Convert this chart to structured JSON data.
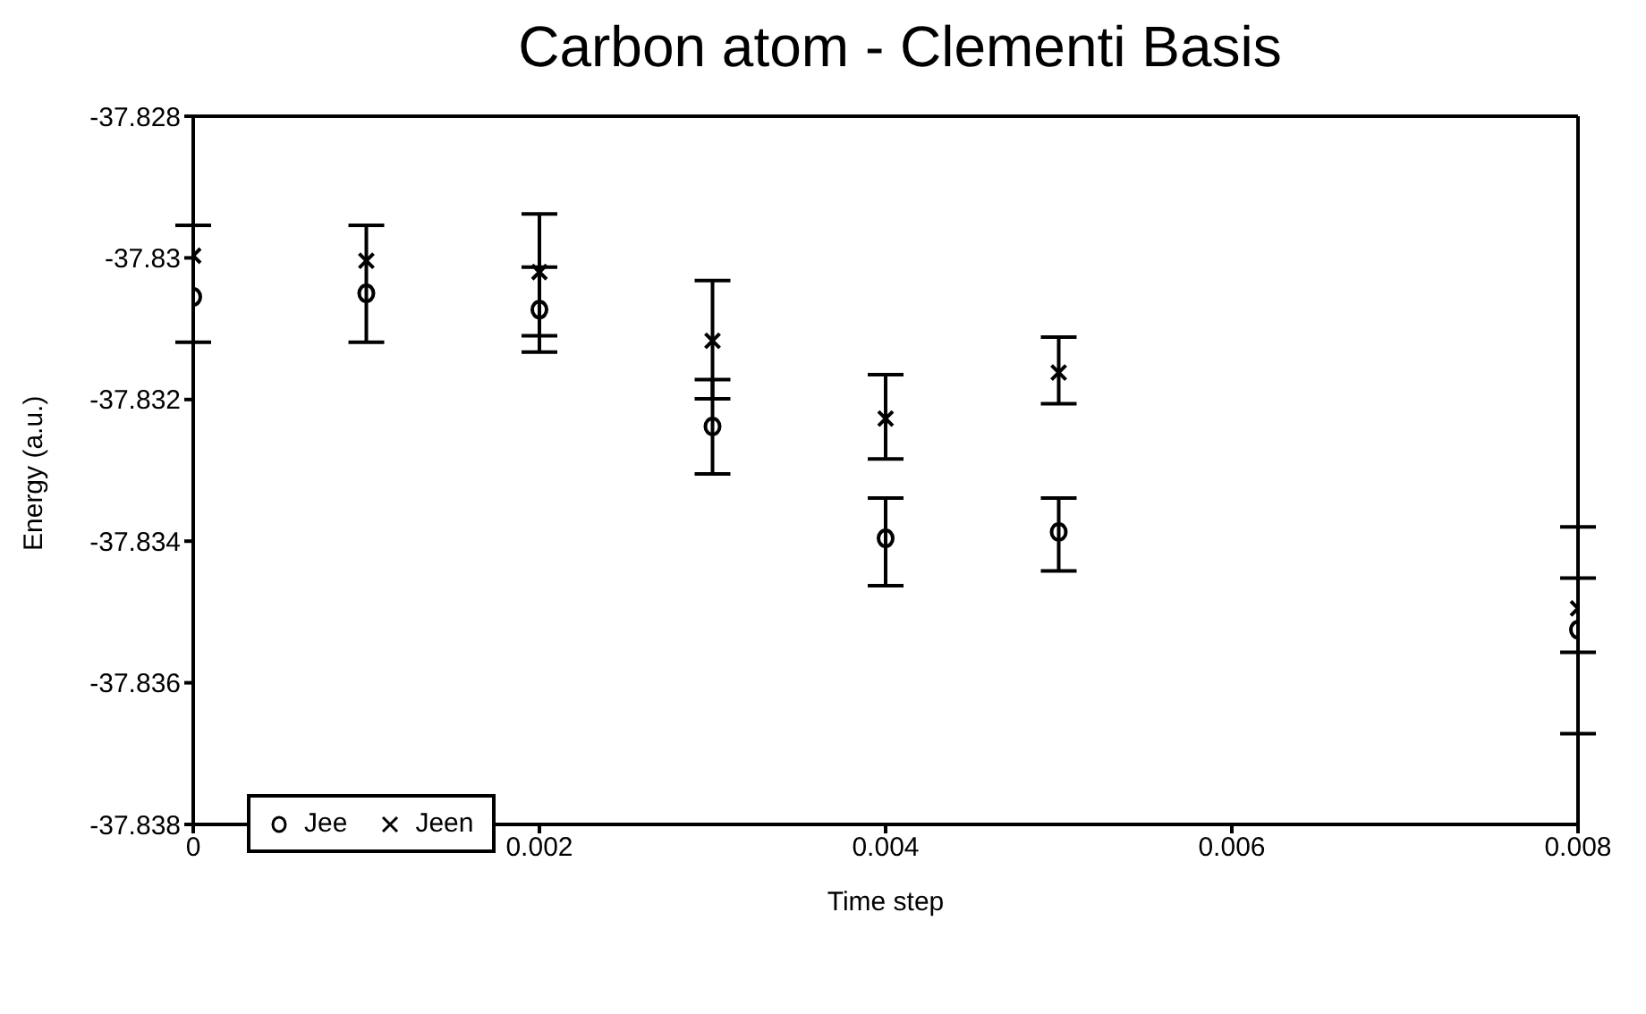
{
  "chart_data": {
    "type": "scatter",
    "title": "Carbon atom - Clementi Basis",
    "xlabel": "Time step",
    "ylabel": "Energy (a.u.)",
    "xlim": [
      0,
      0.008
    ],
    "xticks": [
      0,
      0.002,
      0.004,
      0.006,
      0.008
    ],
    "ylim": [
      -37.838,
      -37.828
    ],
    "yticks": [
      -37.838,
      -37.836,
      -37.834,
      -37.832,
      -37.83,
      -37.828
    ],
    "grid": false,
    "legend": "bottom left",
    "series": [
      {
        "name": "Jee",
        "color": "#000000",
        "marker": "circle",
        "x": [
          0,
          0.001,
          0.002,
          0.003,
          0.004,
          0.005,
          0.008
        ],
        "values": [
          -37.83055,
          -37.8305,
          -37.83073,
          -37.83238,
          -37.83396,
          -37.83387,
          -37.83525
        ],
        "errors": [
          [
            -37.83119,
            -37.82954
          ],
          [
            -37.83119,
            -37.82954
          ],
          [
            -37.83133,
            -37.83013
          ],
          [
            -37.83305,
            -37.83172
          ],
          [
            -37.83463,
            -37.83339
          ],
          [
            -37.83442,
            -37.83339
          ],
          [
            -37.83672,
            -37.8338
          ]
        ]
      },
      {
        "name": "Jeen",
        "color": "#000000",
        "marker": "cross",
        "x": [
          0,
          0.001,
          0.002,
          0.003,
          0.004,
          0.005,
          0.008
        ],
        "values": [
          -37.82997,
          -37.83004,
          -37.8302,
          -37.83117,
          -37.83227,
          -37.83162,
          -37.83495
        ],
        "errors": [
          null,
          null,
          [
            -37.8311,
            -37.82938
          ],
          [
            -37.83199,
            -37.83032
          ],
          [
            -37.83284,
            -37.83165
          ],
          [
            -37.83206,
            -37.83112
          ],
          [
            -37.83557,
            -37.83452
          ]
        ]
      }
    ]
  }
}
